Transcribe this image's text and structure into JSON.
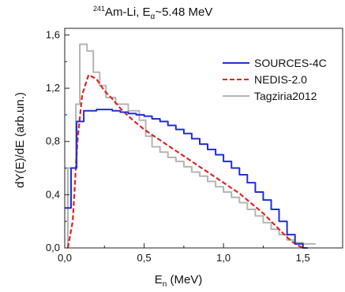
{
  "chart_data": {
    "type": "line",
    "title": {
      "prefix_sup": "241",
      "main": "Am-Li, E",
      "sub": "α",
      "suffix": "~5.48 MeV"
    },
    "xlabel": {
      "main": "E",
      "sub": "n",
      "suffix": " (MeV)"
    },
    "ylabel": "dY(E)/dE (arb.un.)",
    "xlim": [
      0,
      1.75
    ],
    "ylim": [
      0,
      1.65
    ],
    "x_ticks": [
      {
        "value": 0.0,
        "label": "0,0"
      },
      {
        "value": 0.5,
        "label": "0,5"
      },
      {
        "value": 1.0,
        "label": "1,0"
      },
      {
        "value": 1.5,
        "label": "1,5"
      }
    ],
    "y_ticks": [
      {
        "value": 0.0,
        "label": "0,0"
      },
      {
        "value": 0.4,
        "label": "0,4"
      },
      {
        "value": 0.8,
        "label": "0,8"
      },
      {
        "value": 1.2,
        "label": "1,2"
      },
      {
        "value": 1.6,
        "label": "1,6"
      }
    ],
    "grid": false,
    "legend_position": "top-right",
    "series": [
      {
        "name": "SOURCES-4C",
        "color": "#1f2ed8",
        "style": "solid",
        "step": true,
        "points": [
          [
            0.0,
            0.3
          ],
          [
            0.04,
            0.3
          ],
          [
            0.04,
            0.6
          ],
          [
            0.075,
            0.6
          ],
          [
            0.075,
            0.95
          ],
          [
            0.12,
            0.95
          ],
          [
            0.12,
            1.03
          ],
          [
            0.2,
            1.03
          ],
          [
            0.2,
            1.04
          ],
          [
            0.3,
            1.04
          ],
          [
            0.3,
            1.03
          ],
          [
            0.35,
            1.03
          ],
          [
            0.35,
            1.02
          ],
          [
            0.4,
            1.02
          ],
          [
            0.4,
            1.01
          ],
          [
            0.45,
            1.01
          ],
          [
            0.45,
            1.0
          ],
          [
            0.5,
            1.0
          ],
          [
            0.5,
            0.99
          ],
          [
            0.55,
            0.99
          ],
          [
            0.55,
            0.97
          ],
          [
            0.6,
            0.97
          ],
          [
            0.6,
            0.95
          ],
          [
            0.65,
            0.95
          ],
          [
            0.65,
            0.92
          ],
          [
            0.7,
            0.92
          ],
          [
            0.7,
            0.89
          ],
          [
            0.75,
            0.89
          ],
          [
            0.75,
            0.86
          ],
          [
            0.8,
            0.86
          ],
          [
            0.8,
            0.82
          ],
          [
            0.85,
            0.82
          ],
          [
            0.85,
            0.78
          ],
          [
            0.9,
            0.78
          ],
          [
            0.9,
            0.74
          ],
          [
            0.95,
            0.74
          ],
          [
            0.95,
            0.7
          ],
          [
            1.0,
            0.7
          ],
          [
            1.0,
            0.65
          ],
          [
            1.05,
            0.65
          ],
          [
            1.05,
            0.6
          ],
          [
            1.1,
            0.6
          ],
          [
            1.1,
            0.55
          ],
          [
            1.15,
            0.55
          ],
          [
            1.15,
            0.49
          ],
          [
            1.2,
            0.49
          ],
          [
            1.2,
            0.42
          ],
          [
            1.25,
            0.42
          ],
          [
            1.25,
            0.36
          ],
          [
            1.3,
            0.36
          ],
          [
            1.3,
            0.29
          ],
          [
            1.35,
            0.29
          ],
          [
            1.35,
            0.2
          ],
          [
            1.4,
            0.2
          ],
          [
            1.4,
            0.1
          ],
          [
            1.45,
            0.1
          ],
          [
            1.45,
            0.03
          ],
          [
            1.5,
            0.03
          ],
          [
            1.5,
            0.0
          ],
          [
            1.53,
            0.0
          ]
        ]
      },
      {
        "name": "NEDIS-2.0",
        "color": "#e0241f",
        "style": "dashed",
        "step": false,
        "points": [
          [
            0.02,
            0.0
          ],
          [
            0.05,
            0.2
          ],
          [
            0.08,
            0.8
          ],
          [
            0.11,
            1.15
          ],
          [
            0.15,
            1.3
          ],
          [
            0.2,
            1.27
          ],
          [
            0.25,
            1.18
          ],
          [
            0.3,
            1.12
          ],
          [
            0.35,
            1.05
          ],
          [
            0.4,
            0.99
          ],
          [
            0.45,
            0.94
          ],
          [
            0.5,
            0.89
          ],
          [
            0.55,
            0.85
          ],
          [
            0.6,
            0.81
          ],
          [
            0.65,
            0.77
          ],
          [
            0.7,
            0.73
          ],
          [
            0.75,
            0.69
          ],
          [
            0.8,
            0.65
          ],
          [
            0.85,
            0.61
          ],
          [
            0.9,
            0.57
          ],
          [
            0.95,
            0.53
          ],
          [
            1.0,
            0.49
          ],
          [
            1.05,
            0.45
          ],
          [
            1.1,
            0.41
          ],
          [
            1.15,
            0.36
          ],
          [
            1.2,
            0.31
          ],
          [
            1.25,
            0.26
          ],
          [
            1.3,
            0.2
          ],
          [
            1.35,
            0.14
          ],
          [
            1.4,
            0.08
          ],
          [
            1.45,
            0.03
          ],
          [
            1.5,
            0.0
          ]
        ]
      },
      {
        "name": "Tagziria2012",
        "color": "#b4b4b4",
        "style": "solid",
        "step": true,
        "points": [
          [
            0.02,
            0.0
          ],
          [
            0.02,
            0.6
          ],
          [
            0.07,
            0.6
          ],
          [
            0.07,
            1.08
          ],
          [
            0.095,
            1.08
          ],
          [
            0.095,
            1.53
          ],
          [
            0.14,
            1.53
          ],
          [
            0.14,
            1.48
          ],
          [
            0.18,
            1.48
          ],
          [
            0.18,
            1.32
          ],
          [
            0.22,
            1.32
          ],
          [
            0.22,
            1.22
          ],
          [
            0.26,
            1.22
          ],
          [
            0.26,
            1.13
          ],
          [
            0.32,
            1.13
          ],
          [
            0.32,
            1.08
          ],
          [
            0.4,
            1.08
          ],
          [
            0.4,
            1.03
          ],
          [
            0.47,
            1.03
          ],
          [
            0.47,
            0.96
          ],
          [
            0.51,
            0.96
          ],
          [
            0.51,
            0.84
          ],
          [
            0.55,
            0.84
          ],
          [
            0.55,
            0.76
          ],
          [
            0.6,
            0.76
          ],
          [
            0.6,
            0.72
          ],
          [
            0.65,
            0.72
          ],
          [
            0.65,
            0.68
          ],
          [
            0.7,
            0.68
          ],
          [
            0.7,
            0.65
          ],
          [
            0.75,
            0.65
          ],
          [
            0.75,
            0.61
          ],
          [
            0.8,
            0.61
          ],
          [
            0.8,
            0.57
          ],
          [
            0.85,
            0.57
          ],
          [
            0.85,
            0.54
          ],
          [
            0.9,
            0.54
          ],
          [
            0.9,
            0.5
          ],
          [
            0.95,
            0.5
          ],
          [
            0.95,
            0.46
          ],
          [
            1.0,
            0.46
          ],
          [
            1.0,
            0.42
          ],
          [
            1.05,
            0.42
          ],
          [
            1.05,
            0.38
          ],
          [
            1.1,
            0.38
          ],
          [
            1.1,
            0.34
          ],
          [
            1.15,
            0.34
          ],
          [
            1.15,
            0.29
          ],
          [
            1.2,
            0.29
          ],
          [
            1.2,
            0.24
          ],
          [
            1.25,
            0.24
          ],
          [
            1.25,
            0.19
          ],
          [
            1.3,
            0.19
          ],
          [
            1.3,
            0.14
          ],
          [
            1.35,
            0.14
          ],
          [
            1.35,
            0.1
          ],
          [
            1.4,
            0.1
          ],
          [
            1.4,
            0.06
          ],
          [
            1.45,
            0.06
          ],
          [
            1.45,
            0.04
          ],
          [
            1.5,
            0.04
          ],
          [
            1.5,
            0.03
          ],
          [
            1.58,
            0.03
          ]
        ]
      }
    ]
  }
}
